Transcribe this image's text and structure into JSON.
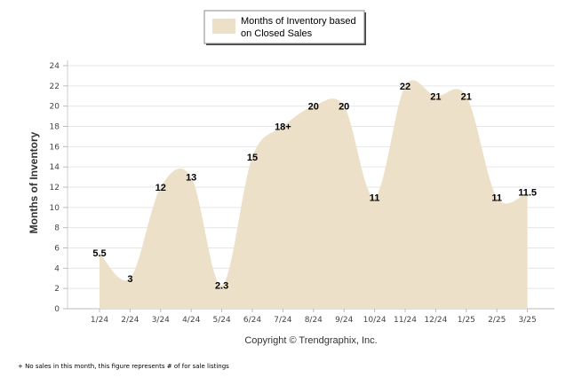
{
  "chart_data": {
    "type": "area",
    "series": [
      {
        "name": "Months of Inventory based on Closed Sales",
        "color": "#ede0c8",
        "values": [
          5.5,
          3,
          12,
          13,
          2.3,
          15,
          18,
          20,
          20,
          11,
          22,
          21,
          21,
          11,
          11.5
        ]
      }
    ],
    "categories": [
      "1/24",
      "2/24",
      "3/24",
      "4/24",
      "5/24",
      "6/24",
      "7/24",
      "8/24",
      "9/24",
      "10/24",
      "11/24",
      "12/24",
      "1/25",
      "2/25",
      "3/25"
    ],
    "data_labels": [
      "5.5",
      "3",
      "12",
      "13",
      "2.3",
      "15",
      "18+",
      "20",
      "20",
      "11",
      "22",
      "21",
      "21",
      "11",
      "11.5"
    ],
    "ylabel": "Months of Inventory",
    "xlabel": "",
    "ylim": [
      0,
      24
    ],
    "yticks": [
      "0",
      "2",
      "4",
      "6",
      "8",
      "10",
      "12",
      "14",
      "16",
      "18",
      "20",
      "22",
      "24"
    ],
    "grid": true,
    "legend": {
      "position": "top-center",
      "line1": "Months of Inventory based",
      "line2": "on Closed Sales"
    },
    "copyright": "Copyright © Trendgraphix, Inc.",
    "footnote": "+  No sales in this month, this figure represents # of for sale listings"
  }
}
